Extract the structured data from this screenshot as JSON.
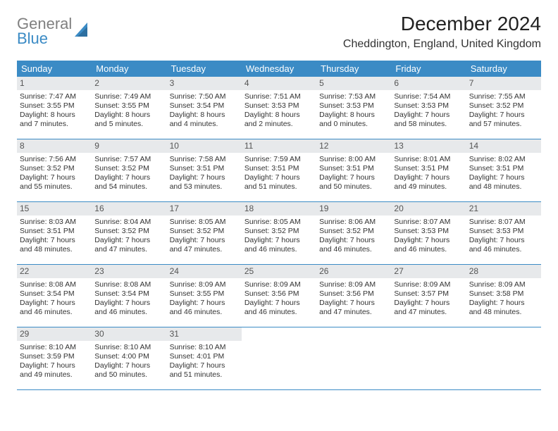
{
  "brand": {
    "line1": "General",
    "line2": "Blue",
    "line1_color": "#808080",
    "line2_color": "#3b8bc5",
    "icon_color": "#3b8bc5"
  },
  "title": "December 2024",
  "location": "Cheddington, England, United Kingdom",
  "colors": {
    "header_bg": "#3b8bc5",
    "header_text": "#ffffff",
    "daynum_bg": "#e7e9eb",
    "daynum_text": "#555555",
    "border": "#3b8bc5",
    "body_text": "#333333",
    "background": "#ffffff"
  },
  "typography": {
    "title_fontsize": 28,
    "location_fontsize": 16,
    "weekday_fontsize": 13,
    "daynum_fontsize": 12,
    "body_fontsize": 10.5
  },
  "weekdays": [
    "Sunday",
    "Monday",
    "Tuesday",
    "Wednesday",
    "Thursday",
    "Friday",
    "Saturday"
  ],
  "weeks": [
    [
      {
        "num": "1",
        "sunrise": "Sunrise: 7:47 AM",
        "sunset": "Sunset: 3:55 PM",
        "day1": "Daylight: 8 hours",
        "day2": "and 7 minutes."
      },
      {
        "num": "2",
        "sunrise": "Sunrise: 7:49 AM",
        "sunset": "Sunset: 3:55 PM",
        "day1": "Daylight: 8 hours",
        "day2": "and 5 minutes."
      },
      {
        "num": "3",
        "sunrise": "Sunrise: 7:50 AM",
        "sunset": "Sunset: 3:54 PM",
        "day1": "Daylight: 8 hours",
        "day2": "and 4 minutes."
      },
      {
        "num": "4",
        "sunrise": "Sunrise: 7:51 AM",
        "sunset": "Sunset: 3:53 PM",
        "day1": "Daylight: 8 hours",
        "day2": "and 2 minutes."
      },
      {
        "num": "5",
        "sunrise": "Sunrise: 7:53 AM",
        "sunset": "Sunset: 3:53 PM",
        "day1": "Daylight: 8 hours",
        "day2": "and 0 minutes."
      },
      {
        "num": "6",
        "sunrise": "Sunrise: 7:54 AM",
        "sunset": "Sunset: 3:53 PM",
        "day1": "Daylight: 7 hours",
        "day2": "and 58 minutes."
      },
      {
        "num": "7",
        "sunrise": "Sunrise: 7:55 AM",
        "sunset": "Sunset: 3:52 PM",
        "day1": "Daylight: 7 hours",
        "day2": "and 57 minutes."
      }
    ],
    [
      {
        "num": "8",
        "sunrise": "Sunrise: 7:56 AM",
        "sunset": "Sunset: 3:52 PM",
        "day1": "Daylight: 7 hours",
        "day2": "and 55 minutes."
      },
      {
        "num": "9",
        "sunrise": "Sunrise: 7:57 AM",
        "sunset": "Sunset: 3:52 PM",
        "day1": "Daylight: 7 hours",
        "day2": "and 54 minutes."
      },
      {
        "num": "10",
        "sunrise": "Sunrise: 7:58 AM",
        "sunset": "Sunset: 3:51 PM",
        "day1": "Daylight: 7 hours",
        "day2": "and 53 minutes."
      },
      {
        "num": "11",
        "sunrise": "Sunrise: 7:59 AM",
        "sunset": "Sunset: 3:51 PM",
        "day1": "Daylight: 7 hours",
        "day2": "and 51 minutes."
      },
      {
        "num": "12",
        "sunrise": "Sunrise: 8:00 AM",
        "sunset": "Sunset: 3:51 PM",
        "day1": "Daylight: 7 hours",
        "day2": "and 50 minutes."
      },
      {
        "num": "13",
        "sunrise": "Sunrise: 8:01 AM",
        "sunset": "Sunset: 3:51 PM",
        "day1": "Daylight: 7 hours",
        "day2": "and 49 minutes."
      },
      {
        "num": "14",
        "sunrise": "Sunrise: 8:02 AM",
        "sunset": "Sunset: 3:51 PM",
        "day1": "Daylight: 7 hours",
        "day2": "and 48 minutes."
      }
    ],
    [
      {
        "num": "15",
        "sunrise": "Sunrise: 8:03 AM",
        "sunset": "Sunset: 3:51 PM",
        "day1": "Daylight: 7 hours",
        "day2": "and 48 minutes."
      },
      {
        "num": "16",
        "sunrise": "Sunrise: 8:04 AM",
        "sunset": "Sunset: 3:52 PM",
        "day1": "Daylight: 7 hours",
        "day2": "and 47 minutes."
      },
      {
        "num": "17",
        "sunrise": "Sunrise: 8:05 AM",
        "sunset": "Sunset: 3:52 PM",
        "day1": "Daylight: 7 hours",
        "day2": "and 47 minutes."
      },
      {
        "num": "18",
        "sunrise": "Sunrise: 8:05 AM",
        "sunset": "Sunset: 3:52 PM",
        "day1": "Daylight: 7 hours",
        "day2": "and 46 minutes."
      },
      {
        "num": "19",
        "sunrise": "Sunrise: 8:06 AM",
        "sunset": "Sunset: 3:52 PM",
        "day1": "Daylight: 7 hours",
        "day2": "and 46 minutes."
      },
      {
        "num": "20",
        "sunrise": "Sunrise: 8:07 AM",
        "sunset": "Sunset: 3:53 PM",
        "day1": "Daylight: 7 hours",
        "day2": "and 46 minutes."
      },
      {
        "num": "21",
        "sunrise": "Sunrise: 8:07 AM",
        "sunset": "Sunset: 3:53 PM",
        "day1": "Daylight: 7 hours",
        "day2": "and 46 minutes."
      }
    ],
    [
      {
        "num": "22",
        "sunrise": "Sunrise: 8:08 AM",
        "sunset": "Sunset: 3:54 PM",
        "day1": "Daylight: 7 hours",
        "day2": "and 46 minutes."
      },
      {
        "num": "23",
        "sunrise": "Sunrise: 8:08 AM",
        "sunset": "Sunset: 3:54 PM",
        "day1": "Daylight: 7 hours",
        "day2": "and 46 minutes."
      },
      {
        "num": "24",
        "sunrise": "Sunrise: 8:09 AM",
        "sunset": "Sunset: 3:55 PM",
        "day1": "Daylight: 7 hours",
        "day2": "and 46 minutes."
      },
      {
        "num": "25",
        "sunrise": "Sunrise: 8:09 AM",
        "sunset": "Sunset: 3:56 PM",
        "day1": "Daylight: 7 hours",
        "day2": "and 46 minutes."
      },
      {
        "num": "26",
        "sunrise": "Sunrise: 8:09 AM",
        "sunset": "Sunset: 3:56 PM",
        "day1": "Daylight: 7 hours",
        "day2": "and 47 minutes."
      },
      {
        "num": "27",
        "sunrise": "Sunrise: 8:09 AM",
        "sunset": "Sunset: 3:57 PM",
        "day1": "Daylight: 7 hours",
        "day2": "and 47 minutes."
      },
      {
        "num": "28",
        "sunrise": "Sunrise: 8:09 AM",
        "sunset": "Sunset: 3:58 PM",
        "day1": "Daylight: 7 hours",
        "day2": "and 48 minutes."
      }
    ],
    [
      {
        "num": "29",
        "sunrise": "Sunrise: 8:10 AM",
        "sunset": "Sunset: 3:59 PM",
        "day1": "Daylight: 7 hours",
        "day2": "and 49 minutes."
      },
      {
        "num": "30",
        "sunrise": "Sunrise: 8:10 AM",
        "sunset": "Sunset: 4:00 PM",
        "day1": "Daylight: 7 hours",
        "day2": "and 50 minutes."
      },
      {
        "num": "31",
        "sunrise": "Sunrise: 8:10 AM",
        "sunset": "Sunset: 4:01 PM",
        "day1": "Daylight: 7 hours",
        "day2": "and 51 minutes."
      },
      null,
      null,
      null,
      null
    ]
  ]
}
